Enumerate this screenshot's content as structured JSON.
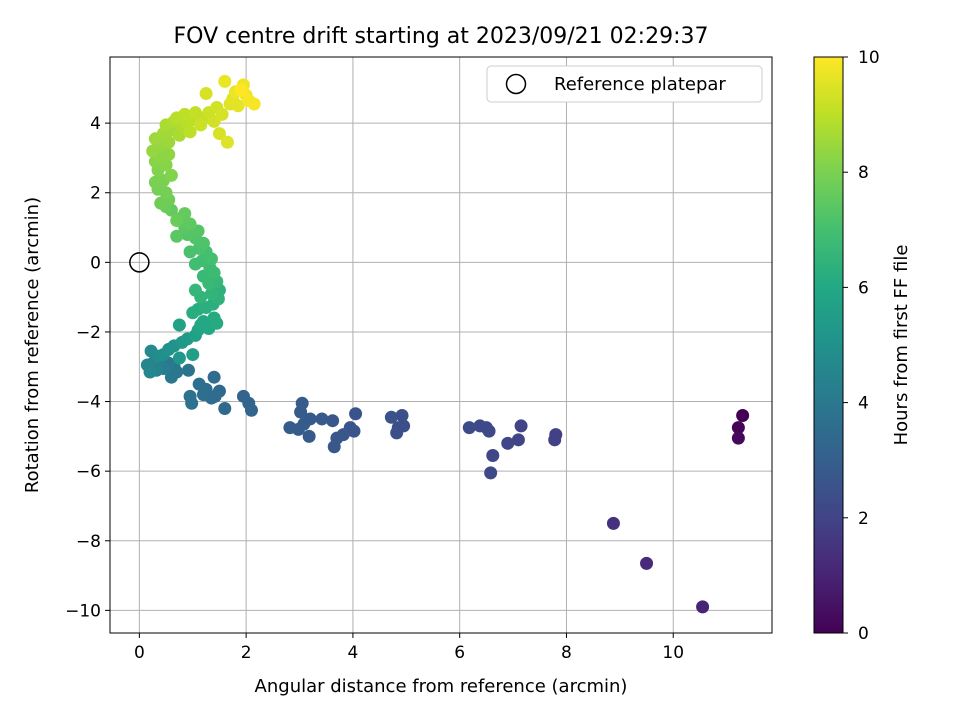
{
  "chart_data": {
    "type": "scatter",
    "title": "FOV centre drift starting at 2023/09/21 02:29:37",
    "xlabel": "Angular distance from reference (arcmin)",
    "ylabel": "Rotation from reference (arcmin)",
    "xlim": [
      -0.55,
      11.85
    ],
    "ylim": [
      -10.65,
      5.9
    ],
    "xticks": [
      0,
      2,
      4,
      6,
      8,
      10
    ],
    "yticks": [
      -10,
      -8,
      -6,
      -4,
      -2,
      0,
      2,
      4
    ],
    "grid": true,
    "legend": {
      "placement": "top-right",
      "entries": [
        "Reference platepar"
      ]
    },
    "reference_point": {
      "x": 0,
      "y": 0,
      "label": "Reference platepar"
    },
    "colorbar": {
      "label": "Hours from first FF file",
      "colormap": "viridis",
      "range": [
        0,
        10
      ],
      "ticks": [
        0,
        2,
        4,
        6,
        8,
        10
      ]
    },
    "series": [
      {
        "columns": [
          "x",
          "y",
          "hours"
        ],
        "points": [
          [
            11.3,
            -4.4,
            0.0
          ],
          [
            11.22,
            -4.75,
            0.1
          ],
          [
            11.22,
            -5.05,
            0.2
          ],
          [
            10.55,
            -9.9,
            1.0
          ],
          [
            9.5,
            -8.65,
            1.2
          ],
          [
            8.88,
            -7.5,
            1.4
          ],
          [
            7.8,
            -4.95,
            1.9
          ],
          [
            7.78,
            -5.1,
            1.9
          ],
          [
            7.15,
            -4.7,
            2.0
          ],
          [
            7.1,
            -5.1,
            2.0
          ],
          [
            6.9,
            -5.2,
            2.1
          ],
          [
            6.62,
            -5.55,
            2.1
          ],
          [
            6.58,
            -6.05,
            2.2
          ],
          [
            6.55,
            -4.85,
            2.2
          ],
          [
            6.5,
            -4.75,
            2.2
          ],
          [
            6.38,
            -4.7,
            2.2
          ],
          [
            6.18,
            -4.75,
            2.3
          ],
          [
            4.95,
            -4.7,
            2.4
          ],
          [
            4.92,
            -4.4,
            2.4
          ],
          [
            4.85,
            -4.75,
            2.4
          ],
          [
            4.82,
            -4.9,
            2.4
          ],
          [
            4.72,
            -4.45,
            2.5
          ],
          [
            4.05,
            -4.35,
            2.6
          ],
          [
            4.02,
            -4.85,
            2.6
          ],
          [
            3.95,
            -4.75,
            2.6
          ],
          [
            3.82,
            -4.95,
            2.7
          ],
          [
            3.7,
            -5.05,
            2.7
          ],
          [
            3.65,
            -5.3,
            2.7
          ],
          [
            3.62,
            -4.55,
            2.7
          ],
          [
            3.42,
            -4.5,
            2.8
          ],
          [
            3.2,
            -4.5,
            2.8
          ],
          [
            3.18,
            -5.0,
            2.8
          ],
          [
            3.08,
            -4.65,
            2.9
          ],
          [
            3.05,
            -4.05,
            2.9
          ],
          [
            3.02,
            -4.3,
            2.9
          ],
          [
            2.98,
            -4.8,
            2.9
          ],
          [
            2.82,
            -4.75,
            2.9
          ],
          [
            2.1,
            -4.25,
            3.2
          ],
          [
            2.05,
            -4.05,
            3.2
          ],
          [
            1.95,
            -3.85,
            3.2
          ],
          [
            1.6,
            -4.2,
            3.4
          ],
          [
            1.5,
            -3.7,
            3.4
          ],
          [
            1.42,
            -3.85,
            3.5
          ],
          [
            1.4,
            -3.3,
            3.5
          ],
          [
            1.35,
            -3.9,
            3.5
          ],
          [
            1.25,
            -3.65,
            3.6
          ],
          [
            1.2,
            -3.8,
            3.6
          ],
          [
            1.12,
            -3.5,
            3.6
          ],
          [
            0.98,
            -4.05,
            3.7
          ],
          [
            0.95,
            -3.85,
            3.7
          ],
          [
            0.92,
            -3.1,
            3.8
          ],
          [
            0.7,
            -3.15,
            3.9
          ],
          [
            0.65,
            -3.0,
            4.0
          ],
          [
            0.6,
            -3.3,
            4.0
          ],
          [
            0.55,
            -2.9,
            4.1
          ],
          [
            0.45,
            -3.05,
            4.2
          ],
          [
            0.38,
            -2.8,
            4.3
          ],
          [
            0.32,
            -3.1,
            4.4
          ],
          [
            0.25,
            -2.9,
            4.4
          ],
          [
            0.2,
            -3.15,
            4.5
          ],
          [
            0.15,
            -2.95,
            4.6
          ],
          [
            0.22,
            -2.55,
            4.7
          ],
          [
            0.35,
            -2.7,
            4.8
          ],
          [
            0.45,
            -2.65,
            4.9
          ],
          [
            0.55,
            -2.5,
            5.0
          ],
          [
            0.65,
            -2.4,
            5.1
          ],
          [
            0.75,
            -2.75,
            5.2
          ],
          [
            0.8,
            -2.3,
            5.3
          ],
          [
            0.9,
            -2.2,
            5.4
          ],
          [
            1.0,
            -2.65,
            5.5
          ],
          [
            1.05,
            -2.1,
            5.6
          ],
          [
            0.75,
            -1.8,
            5.7
          ],
          [
            1.1,
            -1.95,
            5.8
          ],
          [
            1.15,
            -1.8,
            5.9
          ],
          [
            1.2,
            -1.7,
            6.0
          ],
          [
            1.3,
            -1.9,
            6.0
          ],
          [
            1.4,
            -1.6,
            6.1
          ],
          [
            1.45,
            -1.75,
            6.1
          ],
          [
            1.0,
            -1.45,
            6.2
          ],
          [
            1.1,
            -1.35,
            6.2
          ],
          [
            1.25,
            -1.3,
            6.3
          ],
          [
            1.38,
            -1.2,
            6.3
          ],
          [
            1.48,
            -1.05,
            6.4
          ],
          [
            1.5,
            -0.8,
            6.4
          ],
          [
            1.35,
            -0.9,
            6.5
          ],
          [
            1.15,
            -1.0,
            6.5
          ],
          [
            1.05,
            -0.8,
            6.6
          ],
          [
            1.45,
            -0.55,
            6.6
          ],
          [
            1.3,
            -0.6,
            6.7
          ],
          [
            1.2,
            -0.4,
            6.7
          ],
          [
            1.4,
            -0.3,
            6.8
          ],
          [
            1.32,
            -0.15,
            6.8
          ],
          [
            1.05,
            -0.05,
            6.9
          ],
          [
            1.18,
            0.05,
            6.9
          ],
          [
            1.35,
            0.1,
            7.0
          ],
          [
            1.25,
            0.3,
            7.0
          ],
          [
            1.12,
            0.4,
            7.1
          ],
          [
            0.95,
            0.3,
            7.1
          ],
          [
            1.2,
            0.55,
            7.2
          ],
          [
            1.05,
            0.7,
            7.2
          ],
          [
            0.9,
            0.8,
            7.3
          ],
          [
            1.1,
            0.9,
            7.3
          ],
          [
            0.85,
            1.0,
            7.4
          ],
          [
            0.7,
            0.75,
            7.4
          ],
          [
            0.95,
            1.1,
            7.5
          ],
          [
            0.75,
            1.25,
            7.5
          ],
          [
            0.85,
            1.4,
            7.6
          ],
          [
            0.6,
            1.5,
            7.6
          ],
          [
            0.7,
            1.2,
            7.7
          ],
          [
            0.5,
            1.6,
            7.7
          ],
          [
            0.55,
            1.8,
            7.8
          ],
          [
            0.4,
            1.7,
            7.8
          ],
          [
            0.5,
            2.0,
            7.9
          ],
          [
            0.35,
            2.1,
            7.9
          ],
          [
            0.3,
            2.3,
            8.0
          ],
          [
            0.45,
            2.35,
            8.0
          ],
          [
            0.6,
            2.5,
            8.1
          ],
          [
            0.35,
            2.65,
            8.1
          ],
          [
            0.5,
            2.8,
            8.2
          ],
          [
            0.3,
            2.9,
            8.2
          ],
          [
            0.4,
            3.05,
            8.3
          ],
          [
            0.55,
            3.1,
            8.3
          ],
          [
            0.25,
            3.2,
            8.4
          ],
          [
            0.4,
            3.35,
            8.4
          ],
          [
            0.55,
            3.45,
            8.5
          ],
          [
            0.3,
            3.55,
            8.5
          ],
          [
            0.45,
            3.7,
            8.6
          ],
          [
            0.6,
            3.8,
            8.6
          ],
          [
            0.75,
            3.65,
            8.7
          ],
          [
            0.5,
            3.95,
            8.7
          ],
          [
            0.65,
            4.05,
            8.8
          ],
          [
            0.8,
            3.9,
            8.8
          ],
          [
            0.7,
            4.15,
            8.9
          ],
          [
            0.9,
            4.0,
            8.9
          ],
          [
            0.85,
            4.25,
            9.0
          ],
          [
            1.0,
            4.1,
            9.0
          ],
          [
            0.95,
            3.75,
            9.0
          ],
          [
            1.05,
            4.3,
            9.1
          ],
          [
            1.2,
            4.15,
            9.1
          ],
          [
            1.15,
            3.95,
            9.2
          ],
          [
            1.3,
            4.3,
            9.2
          ],
          [
            1.4,
            4.05,
            9.3
          ],
          [
            1.45,
            4.45,
            9.3
          ],
          [
            1.55,
            4.25,
            9.4
          ],
          [
            1.5,
            3.7,
            9.4
          ],
          [
            1.25,
            4.85,
            9.4
          ],
          [
            1.65,
            3.45,
            9.5
          ],
          [
            1.7,
            4.55,
            9.5
          ],
          [
            1.75,
            4.7,
            9.6
          ],
          [
            1.85,
            4.5,
            9.6
          ],
          [
            1.6,
            5.2,
            9.7
          ],
          [
            1.8,
            4.9,
            9.7
          ],
          [
            1.95,
            5.1,
            9.8
          ],
          [
            2.0,
            4.8,
            9.8
          ],
          [
            2.05,
            4.65,
            9.9
          ],
          [
            2.15,
            4.55,
            9.9
          ],
          [
            1.9,
            4.95,
            10.0
          ]
        ]
      }
    ]
  }
}
